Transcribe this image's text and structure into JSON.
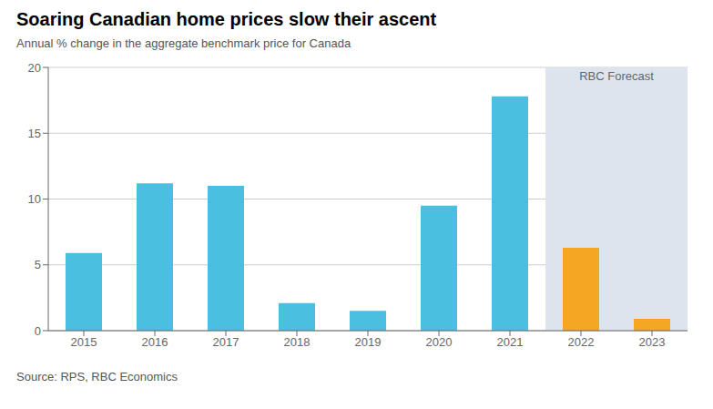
{
  "chart_data": {
    "type": "bar",
    "title": "Soaring Canadian home prices slow their ascent",
    "subtitle": "Annual % change in the aggregate benchmark price for Canada",
    "source": "Source: RPS, RBC Economics",
    "categories": [
      "2015",
      "2016",
      "2017",
      "2018",
      "2019",
      "2020",
      "2021",
      "2022",
      "2023"
    ],
    "values": [
      5.9,
      11.2,
      11.0,
      2.1,
      1.5,
      9.5,
      17.8,
      6.3,
      0.9
    ],
    "colors": [
      "#4BBFE0",
      "#4BBFE0",
      "#4BBFE0",
      "#4BBFE0",
      "#4BBFE0",
      "#4BBFE0",
      "#4BBFE0",
      "#F5A623",
      "#F5A623"
    ],
    "ylim": [
      0,
      20
    ],
    "yticks": [
      0,
      5,
      10,
      15,
      20
    ],
    "grid": true,
    "annotations": [
      {
        "text": "RBC Forecast",
        "x": [
          "2022",
          "2023"
        ],
        "color": "#DDE4EE"
      }
    ]
  }
}
